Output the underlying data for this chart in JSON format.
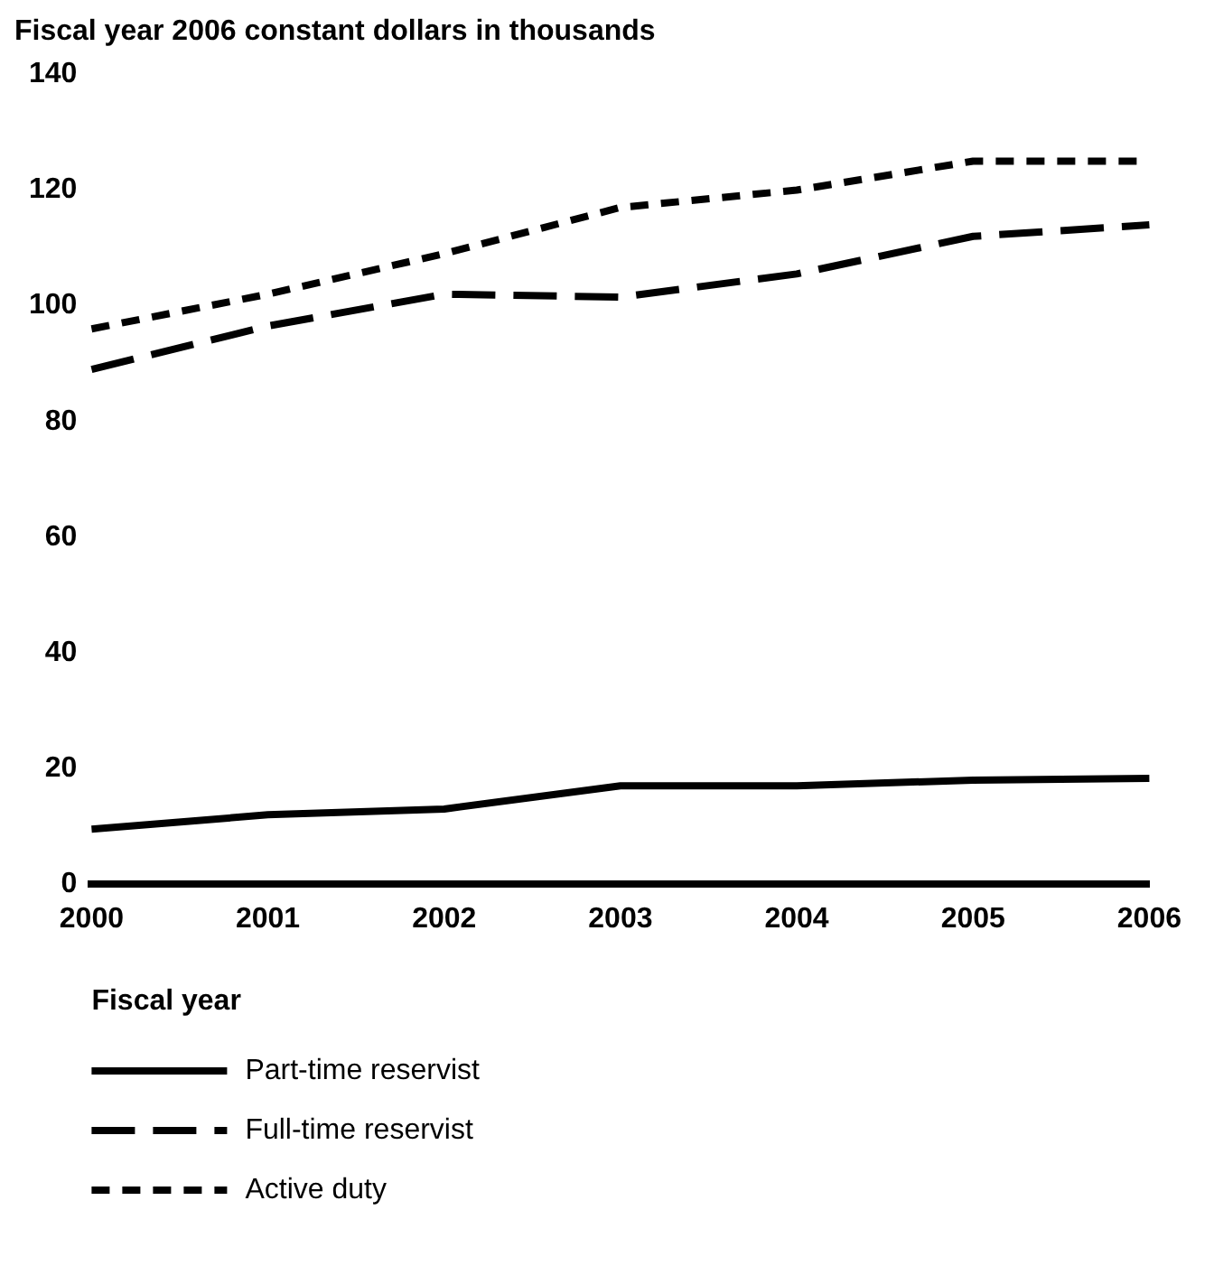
{
  "chart_data": {
    "type": "line",
    "ylabel": "Fiscal year 2006 constant dollars in thousands",
    "xlabel": "Fiscal year",
    "categories": [
      "2000",
      "2001",
      "2002",
      "2003",
      "2004",
      "2005",
      "2006"
    ],
    "ylim": [
      0,
      140
    ],
    "yticks": [
      0,
      20,
      40,
      60,
      80,
      100,
      120,
      140
    ],
    "legend": "bottom",
    "marker": "none",
    "series": [
      {
        "name": "Part-time reservist",
        "color": "#000000",
        "line_style": "solid",
        "values": [
          9.5,
          12,
          13,
          17,
          17,
          18,
          18.3
        ]
      },
      {
        "name": "Full-time reservist",
        "color": "#000000",
        "line_style": "dashed",
        "values": [
          89,
          96.5,
          102,
          101.5,
          105.5,
          112,
          114
        ]
      },
      {
        "name": "Active duty",
        "color": "#000000",
        "line_style": "dotted",
        "values": [
          96,
          102,
          109,
          117,
          120,
          125,
          125
        ]
      }
    ]
  }
}
